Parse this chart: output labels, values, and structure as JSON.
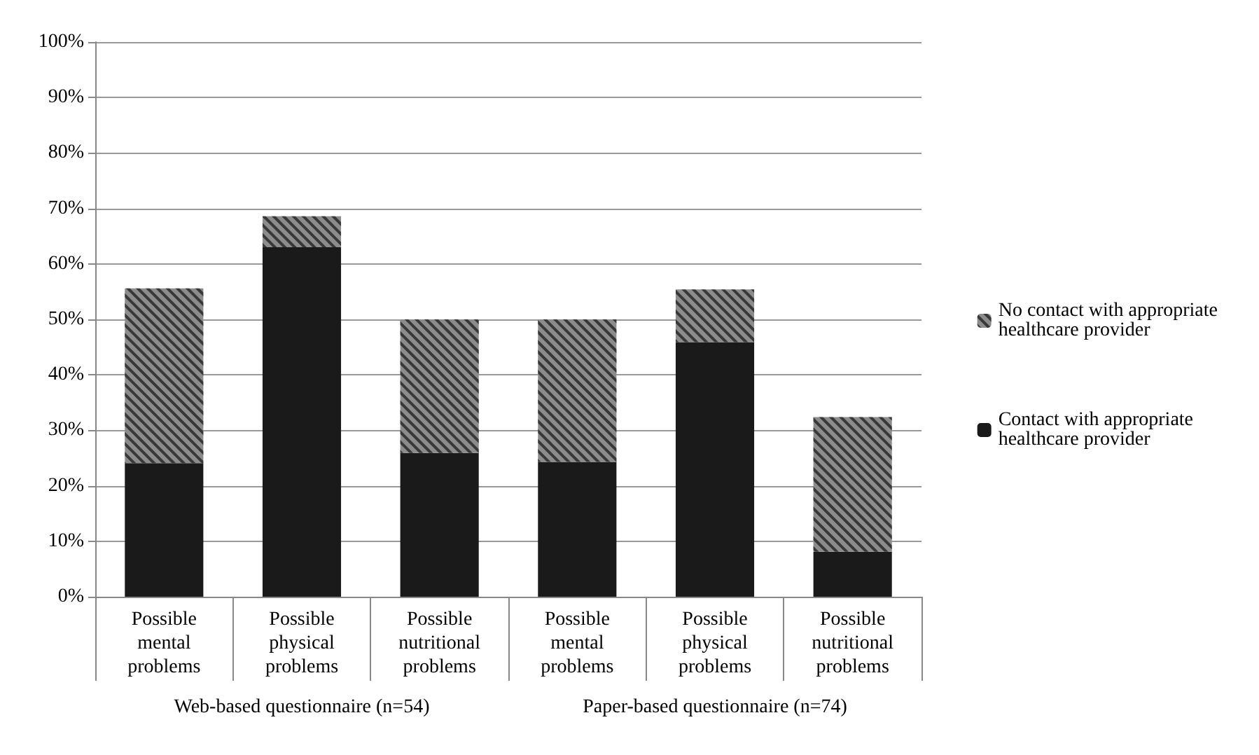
{
  "chart_data": {
    "type": "bar",
    "stacked": true,
    "categories": [
      "Possible mental problems",
      "Possible physical problems",
      "Possible nutritional problems",
      "Possible mental problems",
      "Possible physical problems",
      "Possible nutritional problems"
    ],
    "series": [
      {
        "name": "Contact with appropriate healthcare provider",
        "color": "#1a1a1a",
        "values": [
          24.1,
          63.0,
          25.9,
          24.3,
          45.9,
          8.1
        ]
      },
      {
        "name": "No contact with appropriate healthcare provider",
        "color": "#8c8c8c",
        "values": [
          31.5,
          5.6,
          24.1,
          25.7,
          9.5,
          24.3
        ]
      }
    ],
    "ylim": [
      0,
      100
    ],
    "yticks": [
      {
        "value": 0,
        "label": "0%"
      },
      {
        "value": 10,
        "label": "10%"
      },
      {
        "value": 20,
        "label": "20%"
      },
      {
        "value": 30,
        "label": "30%"
      },
      {
        "value": 40,
        "label": "40%"
      },
      {
        "value": 50,
        "label": "50%"
      },
      {
        "value": 60,
        "label": "60%"
      },
      {
        "value": 70,
        "label": "70%"
      },
      {
        "value": 80,
        "label": "80%"
      },
      {
        "value": 90,
        "label": "90%"
      },
      {
        "value": 100,
        "label": "100%"
      }
    ],
    "grid": "y",
    "legend": "right",
    "annotations": [
      "Web-based questionnaire (n=54)",
      "Paper-based questionnaire (n=74)"
    ]
  }
}
